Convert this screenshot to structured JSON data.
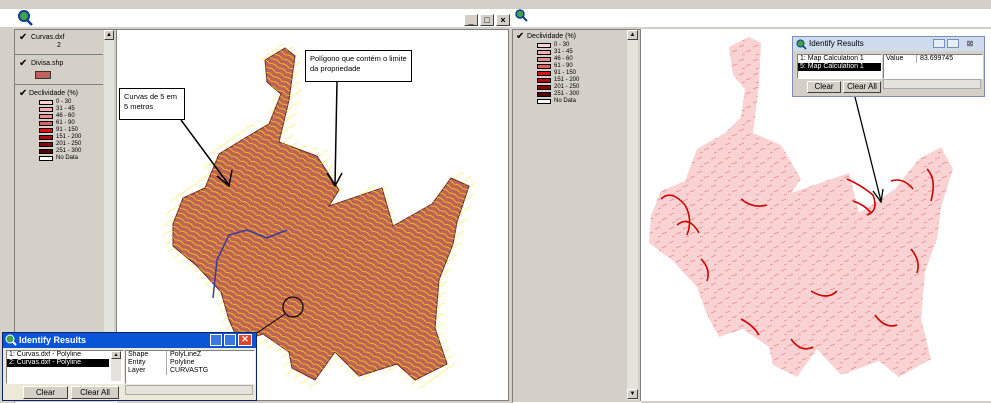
{
  "left_window": {
    "app_icon": "magnifier-globe-icon",
    "controls": [
      "_",
      "□",
      "×"
    ],
    "toc": {
      "layer1": {
        "name": "Curvas.dxf",
        "value": "2"
      },
      "layer2": {
        "name": "Divisa.shp"
      },
      "layer3": {
        "name": "Declividade (%)"
      }
    }
  },
  "right_window": {
    "app_icon": "magnifier-globe-icon",
    "toc": {
      "layer_name": "Declividade (%)"
    }
  },
  "legend_classes": [
    {
      "label": "0 - 30",
      "color": "#f9d3d3"
    },
    {
      "label": "31 - 45",
      "color": "#f3aeb0"
    },
    {
      "label": "46 - 60",
      "color": "#ec8a8b"
    },
    {
      "label": "61 - 90",
      "color": "#e45e5f"
    },
    {
      "label": "91 - 150",
      "color": "#e01010"
    },
    {
      "label": "151 - 200",
      "color": "#b30c0c"
    },
    {
      "label": "201 - 250",
      "color": "#860808"
    },
    {
      "label": "251 - 300",
      "color": "#5a0505"
    },
    {
      "label": "No Data",
      "color": "#ffffff"
    }
  ],
  "callouts": {
    "contours": "Curvas de 5 em 5 metros",
    "polygon": "Polígono que contém o limite da propriedade"
  },
  "identify_left": {
    "title": "Identify Results",
    "list": [
      "1: Curvas.dxf - Polyline",
      "2: Curvas.dxf - Polyline"
    ],
    "selected": 1,
    "fields": [
      {
        "name": "Shape",
        "value": "PolyLineZ"
      },
      {
        "name": "Entity",
        "value": "Polyline"
      },
      {
        "name": "Layer",
        "value": "CURVASTG"
      }
    ],
    "clear": "Clear",
    "clear_all": "Clear All"
  },
  "identify_right": {
    "title": "Identify Results",
    "list": [
      "1: Map Calculation 1",
      "5: Map Calculation 1"
    ],
    "selected": 1,
    "field": {
      "name": "Value",
      "value": "83.699745"
    },
    "clear": "Clear",
    "clear_all": "Clear All"
  },
  "colors": {
    "polygon_fill": "#c0615a",
    "contour_line": "#f2e600",
    "slope_low": "#f9d3d3",
    "slope_high": "#d00000",
    "titlebar": "#0a246a",
    "identify_titlebar": "#0a55d6"
  }
}
